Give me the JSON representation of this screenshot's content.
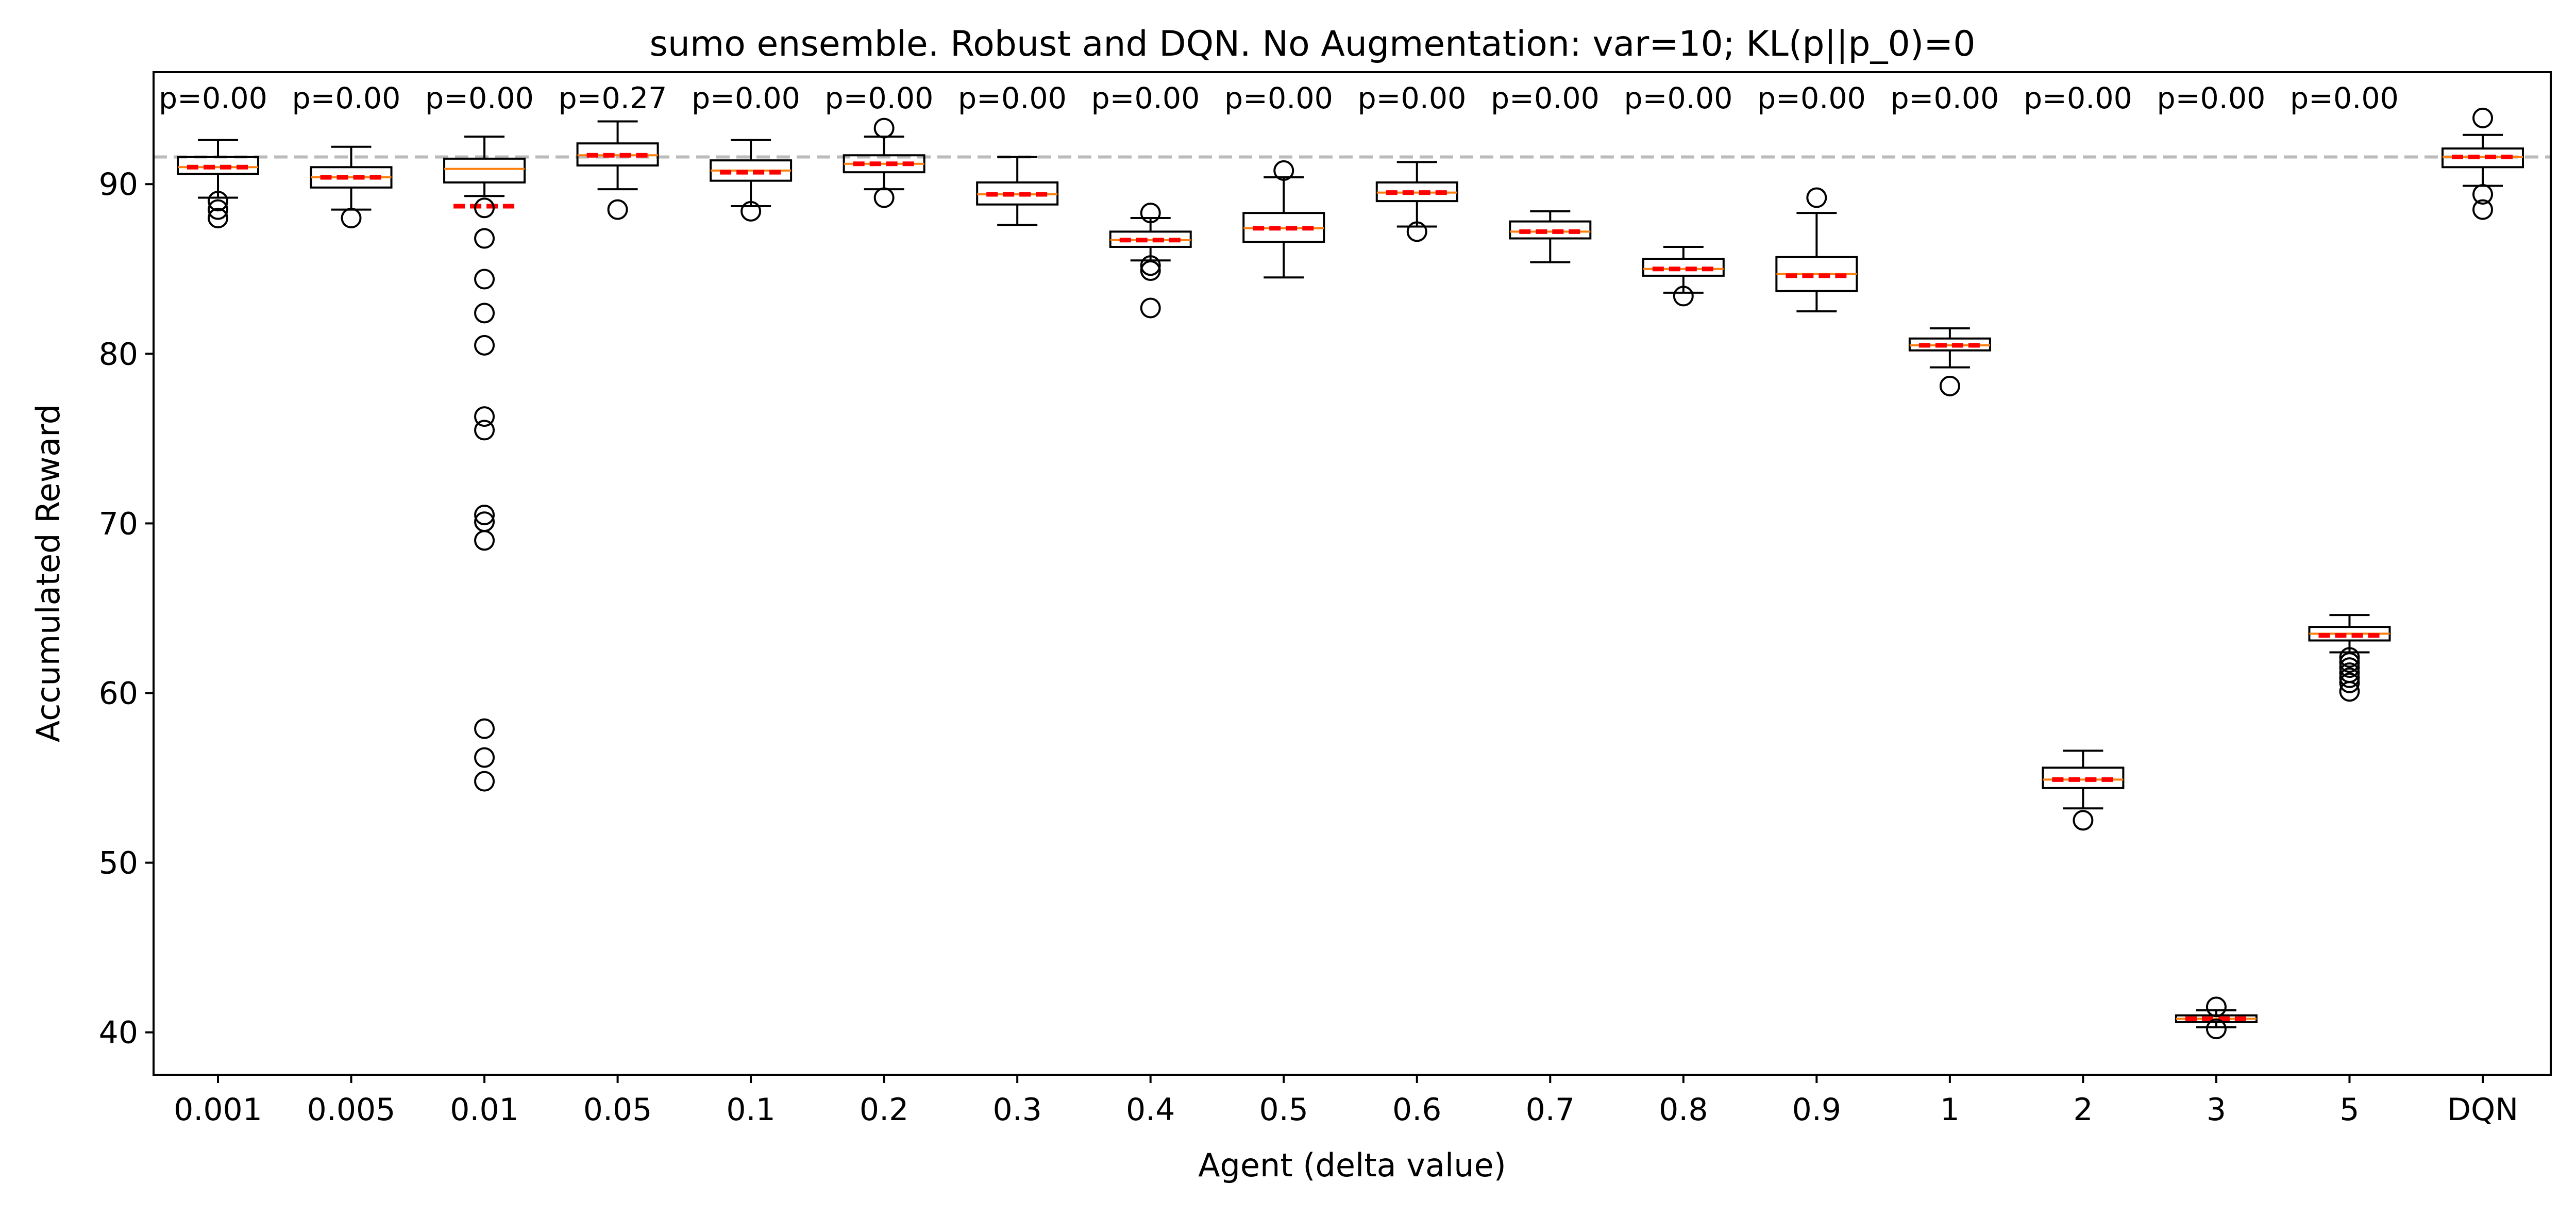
{
  "chart_data": {
    "type": "box",
    "title": "sumo ensemble. Robust and DQN. No Augmentation: var=10; KL(p||p_0)=0",
    "xlabel": "Agent (delta value)",
    "ylabel": "Accumulated Reward",
    "ylim": [
      37.5,
      96.6
    ],
    "yticks": [
      40,
      50,
      60,
      70,
      80,
      90
    ],
    "reference_line": 91.6,
    "colors": {
      "box": "#000000",
      "median": "#ff7f0e",
      "mean": "#ff0000",
      "reference_line": "#bbbbbb"
    },
    "categories": [
      "0.001",
      "0.005",
      "0.01",
      "0.05",
      "0.1",
      "0.2",
      "0.3",
      "0.4",
      "0.5",
      "0.6",
      "0.7",
      "0.8",
      "0.9",
      "1",
      "2",
      "3",
      "5",
      "DQN"
    ],
    "p_labels": [
      "p=0.00",
      "p=0.00",
      "p=0.00",
      "p=0.27",
      "p=0.00",
      "p=0.00",
      "p=0.00",
      "p=0.00",
      "p=0.00",
      "p=0.00",
      "p=0.00",
      "p=0.00",
      "p=0.00",
      "p=0.00",
      "p=0.00",
      "p=0.00",
      "p=0.00"
    ],
    "boxes": [
      {
        "whislo": 89.2,
        "q1": 90.6,
        "med": 91.0,
        "mean": 91.0,
        "q3": 91.6,
        "whishi": 92.6,
        "fliers": [
          89.0,
          88.5,
          88.0
        ]
      },
      {
        "whislo": 88.5,
        "q1": 89.8,
        "med": 90.4,
        "mean": 90.4,
        "q3": 91.0,
        "whishi": 92.2,
        "fliers": [
          88.0
        ]
      },
      {
        "whislo": 89.3,
        "q1": 90.1,
        "med": 90.9,
        "mean": 88.7,
        "q3": 91.5,
        "whishi": 92.8,
        "fliers": [
          88.6,
          86.8,
          84.4,
          82.4,
          80.5,
          76.3,
          75.5,
          70.5,
          70.1,
          69.0,
          57.9,
          56.2,
          54.8
        ]
      },
      {
        "whislo": 89.7,
        "q1": 91.1,
        "med": 91.7,
        "mean": 91.7,
        "q3": 92.4,
        "whishi": 93.7,
        "fliers": [
          88.5
        ]
      },
      {
        "whislo": 88.7,
        "q1": 90.2,
        "med": 90.8,
        "mean": 90.7,
        "q3": 91.4,
        "whishi": 92.6,
        "fliers": [
          88.4
        ]
      },
      {
        "whislo": 89.7,
        "q1": 90.7,
        "med": 91.2,
        "mean": 91.2,
        "q3": 91.7,
        "whishi": 92.8,
        "fliers": [
          93.3,
          89.2
        ]
      },
      {
        "whislo": 87.6,
        "q1": 88.8,
        "med": 89.4,
        "mean": 89.4,
        "q3": 90.1,
        "whishi": 91.6,
        "fliers": []
      },
      {
        "whislo": 85.5,
        "q1": 86.3,
        "med": 86.7,
        "mean": 86.7,
        "q3": 87.2,
        "whishi": 88.0,
        "fliers": [
          88.3,
          85.2,
          84.9,
          82.7
        ]
      },
      {
        "whislo": 84.5,
        "q1": 86.6,
        "med": 87.4,
        "mean": 87.4,
        "q3": 88.3,
        "whishi": 90.4,
        "fliers": [
          90.8
        ]
      },
      {
        "whislo": 87.5,
        "q1": 89.0,
        "med": 89.5,
        "mean": 89.5,
        "q3": 90.1,
        "whishi": 91.3,
        "fliers": [
          87.2
        ]
      },
      {
        "whislo": 85.4,
        "q1": 86.8,
        "med": 87.2,
        "mean": 87.2,
        "q3": 87.8,
        "whishi": 88.4,
        "fliers": []
      },
      {
        "whislo": 83.6,
        "q1": 84.6,
        "med": 85.0,
        "mean": 85.0,
        "q3": 85.6,
        "whishi": 86.3,
        "fliers": [
          83.4
        ]
      },
      {
        "whislo": 82.5,
        "q1": 83.7,
        "med": 84.7,
        "mean": 84.6,
        "q3": 85.7,
        "whishi": 88.3,
        "fliers": [
          89.2
        ]
      },
      {
        "whislo": 79.2,
        "q1": 80.2,
        "med": 80.5,
        "mean": 80.5,
        "q3": 80.9,
        "whishi": 81.5,
        "fliers": [
          78.1
        ]
      },
      {
        "whislo": 53.2,
        "q1": 54.4,
        "med": 54.9,
        "mean": 54.9,
        "q3": 55.6,
        "whishi": 56.6,
        "fliers": [
          52.5
        ]
      },
      {
        "whislo": 40.3,
        "q1": 40.6,
        "med": 40.8,
        "mean": 40.8,
        "q3": 41.0,
        "whishi": 41.3,
        "fliers": [
          41.5,
          40.2
        ]
      },
      {
        "whislo": 62.4,
        "q1": 63.1,
        "med": 63.5,
        "mean": 63.4,
        "q3": 63.9,
        "whishi": 64.6,
        "fliers": [
          62.1,
          61.8,
          61.5,
          61.2,
          60.9,
          60.6,
          60.1
        ]
      },
      {
        "whislo": 89.9,
        "q1": 91.0,
        "med": 91.6,
        "mean": 91.6,
        "q3": 92.1,
        "whishi": 92.9,
        "fliers": [
          93.9,
          89.4,
          88.5
        ]
      }
    ]
  }
}
